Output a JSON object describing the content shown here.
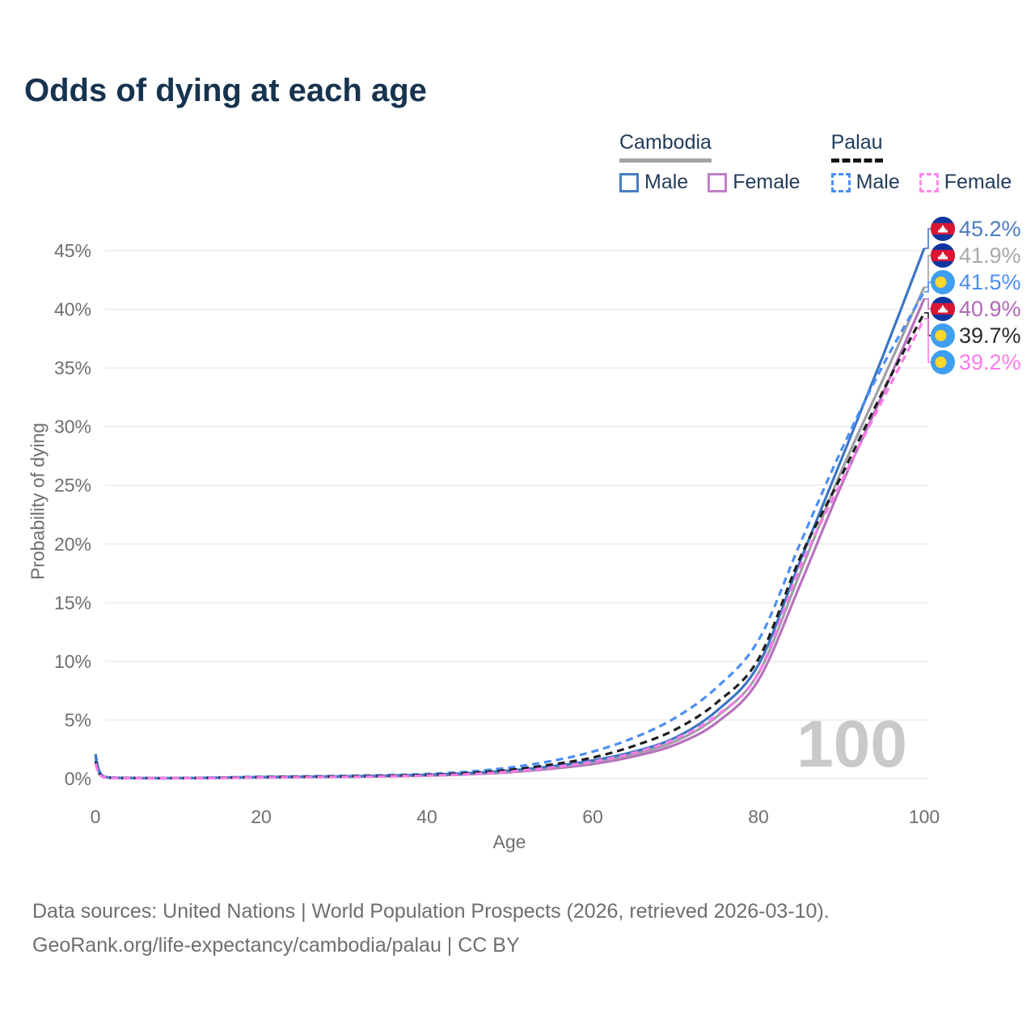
{
  "title": "Odds of dying at each age",
  "legend": {
    "groups": [
      {
        "country": "Cambodia",
        "line_style": "solid",
        "underline_color": "#a3a3a3",
        "items": [
          {
            "label": "Male",
            "color": "#4a7dc2",
            "dash": false
          },
          {
            "label": "Female",
            "color": "#c27fc6",
            "dash": false
          }
        ]
      },
      {
        "country": "Palau",
        "line_style": "dashed",
        "underline_color": "#141414",
        "items": [
          {
            "label": "Male",
            "color": "#4b8ef5",
            "dash": true
          },
          {
            "label": "Female",
            "color": "#fb8aec",
            "dash": true
          }
        ]
      }
    ]
  },
  "axes": {
    "x": {
      "title": "Age",
      "min": 0,
      "max": 100,
      "ticks": [
        0,
        20,
        40,
        60,
        80,
        100
      ],
      "tick_labels": [
        "0",
        "20",
        "40",
        "60",
        "80",
        "100"
      ]
    },
    "y": {
      "title": "Probability of dying",
      "min": 0,
      "max": 45,
      "ticks": [
        0,
        5,
        10,
        15,
        20,
        25,
        30,
        35,
        40,
        45
      ],
      "tick_labels": [
        "0%",
        "5%",
        "10%",
        "15%",
        "20%",
        "25%",
        "30%",
        "35%",
        "40%",
        "45%"
      ]
    }
  },
  "watermark": "100",
  "chart_data": {
    "type": "line",
    "x": [
      0,
      1,
      5,
      10,
      15,
      20,
      25,
      30,
      35,
      40,
      45,
      50,
      55,
      60,
      65,
      70,
      75,
      80,
      85,
      90,
      95,
      100
    ],
    "series": [
      {
        "id": "cambodia-female",
        "name": "Cambodia Female",
        "color": "#b671bd",
        "dash": "solid",
        "values": [
          1.8,
          0.14,
          0.05,
          0.04,
          0.07,
          0.1,
          0.13,
          0.16,
          0.2,
          0.26,
          0.37,
          0.55,
          0.85,
          1.25,
          1.9,
          2.9,
          4.8,
          8.4,
          16.5,
          25.0,
          32.8,
          40.9
        ],
        "end_label": {
          "text": "40.9%",
          "color": "#b266b8",
          "flag": "cambodia"
        }
      },
      {
        "id": "cambodia-total",
        "name": "Cambodia",
        "color": "#9e9fa3",
        "dash": "solid",
        "values": [
          1.95,
          0.15,
          0.055,
          0.045,
          0.08,
          0.12,
          0.15,
          0.18,
          0.22,
          0.29,
          0.42,
          0.62,
          0.95,
          1.4,
          2.1,
          3.2,
          5.3,
          9.0,
          17.5,
          26.2,
          34.0,
          41.9
        ],
        "end_label": {
          "text": "41.9%",
          "color": "#a9a9a9",
          "flag": "cambodia"
        }
      },
      {
        "id": "cambodia-male",
        "name": "Cambodia Male",
        "color": "#3c76c4",
        "dash": "solid",
        "values": [
          2.1,
          0.17,
          0.06,
          0.05,
          0.09,
          0.14,
          0.17,
          0.2,
          0.25,
          0.33,
          0.47,
          0.7,
          1.05,
          1.55,
          2.3,
          3.5,
          5.8,
          9.7,
          18.5,
          27.2,
          36.0,
          45.2
        ],
        "end_label": {
          "text": "45.2%",
          "color": "#4b7cc0",
          "flag": "cambodia"
        }
      },
      {
        "id": "palau-male",
        "name": "Palau Male",
        "color": "#4b8ef5",
        "dash": "dashed",
        "values": [
          1.6,
          0.13,
          0.05,
          0.04,
          0.1,
          0.16,
          0.2,
          0.24,
          0.3,
          0.4,
          0.6,
          0.95,
          1.5,
          2.3,
          3.5,
          5.2,
          7.8,
          11.8,
          20.0,
          28.0,
          35.2,
          41.5
        ],
        "end_label": {
          "text": "41.5%",
          "color": "#4b8ef5",
          "flag": "palau"
        }
      },
      {
        "id": "palau-total",
        "name": "Palau",
        "color": "#1f1f1f",
        "dash": "dashed",
        "values": [
          1.45,
          0.12,
          0.045,
          0.04,
          0.08,
          0.13,
          0.16,
          0.19,
          0.24,
          0.32,
          0.48,
          0.75,
          1.2,
          1.8,
          2.8,
          4.2,
          6.5,
          10.2,
          18.8,
          25.8,
          33.0,
          39.7
        ],
        "end_label": {
          "text": "39.7%",
          "color": "#2a2a2a",
          "flag": "palau"
        }
      },
      {
        "id": "palau-female",
        "name": "Palau Female",
        "color": "#fb7ce8",
        "dash": "dashed",
        "values": [
          1.3,
          0.11,
          0.04,
          0.035,
          0.06,
          0.1,
          0.13,
          0.15,
          0.19,
          0.26,
          0.38,
          0.6,
          0.95,
          1.45,
          2.2,
          3.4,
          5.4,
          9.0,
          18.0,
          25.3,
          32.3,
          39.2
        ],
        "end_label": {
          "text": "39.2%",
          "color": "#fb7ce8",
          "flag": "palau"
        }
      }
    ],
    "flag_colors": {
      "cambodia": {
        "band": "#0f35a0",
        "center": "#da1633",
        "emblem": "#ffffff"
      },
      "palau": {
        "field": "#3f9ff0",
        "disc": "#ffd62e"
      }
    },
    "layout_hints": {
      "grid": true,
      "legend_position": "top-right",
      "xlim": [
        0,
        100
      ],
      "ylim": [
        0,
        47
      ]
    }
  },
  "footer": {
    "line1": "Data sources: United Nations | World Population Prospects (2026, retrieved 2026-03-10).",
    "line2": "GeoRank.org/life-expectancy/cambodia/palau | CC BY"
  }
}
